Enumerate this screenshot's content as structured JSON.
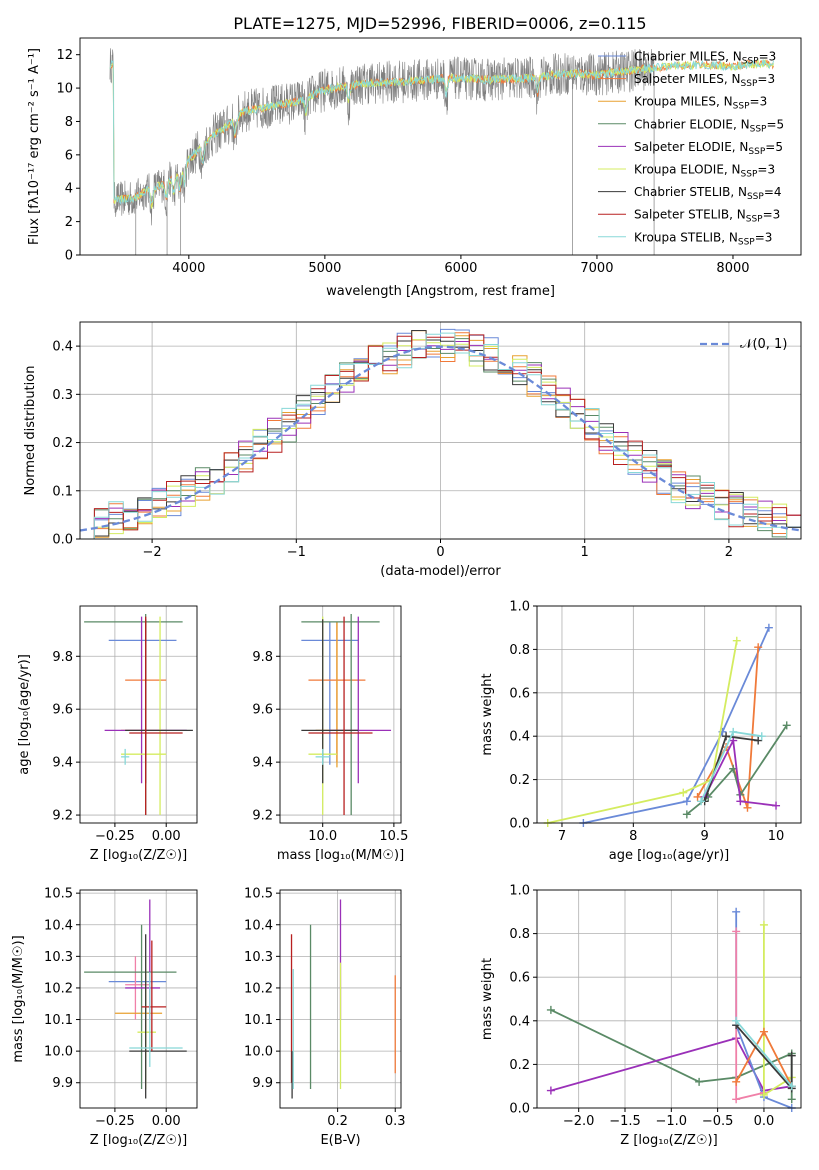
{
  "page_title": "PLATE=1275, MJD=52996, FIBERID=0006, z=0.115",
  "colors": {
    "Chabrier MILES": "#6a8ad8",
    "Salpeter MILES": "#f07a3a",
    "Kroupa MILES": "#e8a030",
    "Chabrier ELODIE": "#5a8a66",
    "Salpeter ELODIE": "#9a30b8",
    "Kroupa ELODIE": "#d4ec60",
    "Chabrier STELIB": "#3a3a3a",
    "Salpeter STELIB": "#b82020",
    "Kroupa STELIB": "#88d8d8",
    "data": "#808080",
    "normal": "#6a8ad8",
    "pink": "#f080a8"
  },
  "chart_data": [
    {
      "id": "spectrum",
      "type": "line",
      "title": "PLATE=1275, MJD=52996, FIBERID=0006, z=0.115",
      "xlabel": "wavelength [Angstrom, rest frame]",
      "ylabel": "Flux [fλ10⁻¹⁷ erg cm⁻² s⁻¹ A⁻¹]",
      "xlim": [
        3200,
        8500
      ],
      "ylim": [
        0,
        13
      ],
      "xticks": [
        "4000",
        "5000",
        "6000",
        "7000",
        "8000"
      ],
      "yticks": [
        "0",
        "2",
        "4",
        "6",
        "8",
        "10",
        "12"
      ],
      "grid": false,
      "legend_position": "right",
      "legend": [
        {
          "name": "Chabrier MILES",
          "label": "Chabrier MILES, N_SSP=3"
        },
        {
          "name": "Salpeter MILES",
          "label": "Salpeter MILES, N_SSP=3"
        },
        {
          "name": "Kroupa MILES",
          "label": "Kroupa MILES, N_SSP=3"
        },
        {
          "name": "Chabrier ELODIE",
          "label": "Chabrier ELODIE, N_SSP=5"
        },
        {
          "name": "Salpeter ELODIE",
          "label": "Salpeter ELODIE, N_SSP=5"
        },
        {
          "name": "Kroupa ELODIE",
          "label": "Kroupa ELODIE, N_SSP=3"
        },
        {
          "name": "Chabrier STELIB",
          "label": "Chabrier STELIB, N_SSP=4"
        },
        {
          "name": "Salpeter STELIB",
          "label": "Salpeter STELIB, N_SSP=3"
        },
        {
          "name": "Kroupa STELIB",
          "label": "Kroupa STELIB, N_SSP=3"
        }
      ],
      "continuum": [
        [
          3450,
          3.3
        ],
        [
          3600,
          3.4
        ],
        [
          3700,
          3.9
        ],
        [
          3800,
          4.2
        ],
        [
          3950,
          5.0
        ],
        [
          4000,
          5.7
        ],
        [
          4100,
          6.5
        ],
        [
          4200,
          7.3
        ],
        [
          4300,
          7.8
        ],
        [
          4400,
          8.6
        ],
        [
          4600,
          8.9
        ],
        [
          4800,
          9.2
        ],
        [
          5000,
          9.9
        ],
        [
          5300,
          10.3
        ],
        [
          5600,
          10.4
        ],
        [
          5900,
          10.6
        ],
        [
          6200,
          10.5
        ],
        [
          6500,
          10.6
        ],
        [
          6800,
          10.9
        ],
        [
          7000,
          10.8
        ],
        [
          7200,
          11.0
        ],
        [
          7500,
          11.3
        ],
        [
          7800,
          11.4
        ],
        [
          8000,
          11.3
        ],
        [
          8200,
          11.5
        ],
        [
          8300,
          11.4
        ]
      ],
      "data_range": [
        3420,
        7420
      ],
      "model_range": [
        3420,
        8300
      ]
    },
    {
      "id": "residuals",
      "type": "line",
      "xlabel": "(data-model)/error",
      "ylabel": "Normed distribution",
      "xlim": [
        -2.5,
        2.5
      ],
      "ylim": [
        0,
        0.45
      ],
      "xticks": [
        "−2",
        "−1",
        "0",
        "1",
        "2"
      ],
      "yticks": [
        "0.0",
        "0.1",
        "0.2",
        "0.3",
        "0.4"
      ],
      "grid": true,
      "legend_position": "top-right",
      "normal_label": "𝒩(0, 1)",
      "bin_width": 0.1
    },
    {
      "id": "age-vs-Z",
      "type": "scatter",
      "xlabel": "Z [log₁₀(Z/Z☉)]",
      "ylabel": "age  [log₁₀(age/yr)]",
      "xlim": [
        -0.42,
        0.15
      ],
      "ylim": [
        9.17,
        9.99
      ],
      "xticks": [
        {
          "v": -0.25,
          "t": "−0.25"
        },
        {
          "v": 0.0,
          "t": "0.00"
        }
      ],
      "yticks": [
        {
          "v": 9.2,
          "t": "9.2"
        },
        {
          "v": 9.4,
          "t": "9.4"
        },
        {
          "v": 9.6,
          "t": "9.6"
        },
        {
          "v": 9.8,
          "t": "9.8"
        }
      ],
      "points": [
        {
          "s": "Chabrier MILES",
          "x": -0.1,
          "xl": -0.28,
          "xh": 0.05,
          "y": 9.86,
          "yl": 9.39,
          "yh": 9.93
        },
        {
          "s": "Salpeter MILES",
          "x": -0.1,
          "xl": -0.2,
          "xh": 0.0,
          "y": 9.71,
          "yl": 9.4,
          "yh": 9.93
        },
        {
          "s": "Kroupa MILES",
          "x": -0.1,
          "xl": -0.22,
          "xh": 0.0,
          "y": 9.52,
          "yl": 9.38,
          "yh": 9.93
        },
        {
          "s": "Chabrier ELODIE",
          "x": -0.1,
          "xl": -0.4,
          "xh": 0.08,
          "y": 9.93,
          "yl": 9.2,
          "yh": 9.96
        },
        {
          "s": "Salpeter ELODIE",
          "x": -0.12,
          "xl": -0.3,
          "xh": 0.1,
          "y": 9.52,
          "yl": 9.32,
          "yh": 9.95
        },
        {
          "s": "Kroupa ELODIE",
          "x": -0.03,
          "xl": -0.22,
          "xh": 0.0,
          "y": 9.43,
          "yl": 9.2,
          "yh": 9.95
        },
        {
          "s": "Chabrier STELIB",
          "x": -0.1,
          "xl": -0.2,
          "xh": 0.13,
          "y": 9.52,
          "yl": 9.32,
          "yh": 9.94
        },
        {
          "s": "Salpeter STELIB",
          "x": -0.1,
          "xl": -0.18,
          "xh": 0.08,
          "y": 9.51,
          "yl": 9.2,
          "yh": 9.95
        },
        {
          "s": "Kroupa STELIB",
          "x": -0.2,
          "xl": -0.22,
          "xh": -0.18,
          "y": 9.42,
          "yl": 9.39,
          "yh": 9.45
        }
      ]
    },
    {
      "id": "age-vs-mass",
      "type": "scatter",
      "xlabel": "mass [log₁₀(M/M☉)]",
      "ylabel": "",
      "xlim": [
        9.7,
        10.55
      ],
      "ylim": [
        9.17,
        9.99
      ],
      "xticks": [
        {
          "v": 10.0,
          "t": "10.0"
        },
        {
          "v": 10.5,
          "t": "10.5"
        }
      ],
      "yticks": [
        {
          "v": 9.2,
          "t": "9.2"
        },
        {
          "v": 9.4,
          "t": "9.4"
        },
        {
          "v": 9.6,
          "t": "9.6"
        },
        {
          "v": 9.8,
          "t": "9.8"
        }
      ],
      "points": [
        {
          "s": "Chabrier MILES",
          "x": 10.05,
          "xl": 9.85,
          "xh": 10.25,
          "y": 9.86,
          "yl": 9.39,
          "yh": 9.93
        },
        {
          "s": "Salpeter MILES",
          "x": 10.1,
          "xl": 9.9,
          "xh": 10.3,
          "y": 9.71,
          "yl": 9.4,
          "yh": 9.93
        },
        {
          "s": "Kroupa MILES",
          "x": 10.1,
          "xl": 9.95,
          "xh": 10.25,
          "y": 9.52,
          "yl": 9.38,
          "yh": 9.93
        },
        {
          "s": "Chabrier ELODIE",
          "x": 10.2,
          "xl": 9.85,
          "xh": 10.4,
          "y": 9.93,
          "yl": 9.2,
          "yh": 9.96
        },
        {
          "s": "Salpeter ELODIE",
          "x": 10.25,
          "xl": 10.05,
          "xh": 10.48,
          "y": 9.52,
          "yl": 9.32,
          "yh": 9.95
        },
        {
          "s": "Kroupa ELODIE",
          "x": 10.0,
          "xl": 9.9,
          "xh": 10.1,
          "y": 9.43,
          "yl": 9.2,
          "yh": 9.95
        },
        {
          "s": "Chabrier STELIB",
          "x": 10.0,
          "xl": 9.85,
          "xh": 10.25,
          "y": 9.52,
          "yl": 9.32,
          "yh": 9.94
        },
        {
          "s": "Salpeter STELIB",
          "x": 10.15,
          "xl": 9.9,
          "xh": 10.35,
          "y": 9.51,
          "yl": 9.2,
          "yh": 9.95
        },
        {
          "s": "Kroupa STELIB",
          "x": 10.0,
          "xl": 9.95,
          "xh": 10.05,
          "y": 9.42,
          "yl": 9.39,
          "yh": 9.45
        }
      ]
    },
    {
      "id": "mass-weight-vs-age",
      "type": "line",
      "xlabel": "age  [log₁₀(age/yr)]",
      "ylabel": "mass weight",
      "xlim": [
        6.65,
        10.35
      ],
      "ylim": [
        0,
        1.0
      ],
      "xticks": [
        {
          "v": 7,
          "t": "7"
        },
        {
          "v": 8,
          "t": "8"
        },
        {
          "v": 9,
          "t": "9"
        },
        {
          "v": 10,
          "t": "10"
        }
      ],
      "yticks": [
        {
          "v": 0.0,
          "t": "0.0"
        },
        {
          "v": 0.2,
          "t": "0.2"
        },
        {
          "v": 0.4,
          "t": "0.4"
        },
        {
          "v": 0.6,
          "t": "0.6"
        },
        {
          "v": 0.8,
          "t": "0.8"
        },
        {
          "v": 1.0,
          "t": "1.0"
        }
      ],
      "grid": true,
      "series": [
        {
          "s": "Chabrier MILES",
          "points": [
            [
              7.3,
              0.0
            ],
            [
              8.75,
              0.1
            ],
            [
              9.25,
              0.42
            ],
            [
              9.9,
              0.9
            ]
          ]
        },
        {
          "s": "Salpeter MILES",
          "points": [
            [
              8.9,
              0.12
            ],
            [
              9.3,
              0.35
            ],
            [
              9.6,
              0.07
            ],
            [
              9.75,
              0.81
            ]
          ]
        },
        {
          "s": "Kroupa ELODIE",
          "points": [
            [
              6.8,
              0.0
            ],
            [
              8.7,
              0.14
            ],
            [
              9.1,
              0.2
            ],
            [
              9.45,
              0.84
            ]
          ]
        },
        {
          "s": "Chabrier ELODIE",
          "points": [
            [
              8.75,
              0.04
            ],
            [
              9.05,
              0.12
            ],
            [
              9.4,
              0.25
            ],
            [
              9.5,
              0.13
            ],
            [
              10.15,
              0.45
            ]
          ]
        },
        {
          "s": "Salpeter ELODIE",
          "points": [
            [
              9.0,
              0.12
            ],
            [
              9.4,
              0.38
            ],
            [
              9.5,
              0.1
            ],
            [
              10.0,
              0.08
            ]
          ]
        },
        {
          "s": "Chabrier STELIB",
          "points": [
            [
              9.0,
              0.1
            ],
            [
              9.3,
              0.4
            ],
            [
              9.75,
              0.38
            ]
          ]
        },
        {
          "s": "Kroupa STELIB",
          "points": [
            [
              8.95,
              0.1
            ],
            [
              9.4,
              0.42
            ],
            [
              9.8,
              0.4
            ]
          ]
        }
      ]
    },
    {
      "id": "mass-vs-Z",
      "type": "scatter",
      "xlabel": "Z [log₁₀(Z/Z☉)]",
      "ylabel": "mass [log₁₀(M/M☉)]",
      "xlim": [
        -0.42,
        0.15
      ],
      "ylim": [
        9.82,
        10.51
      ],
      "xticks": [
        {
          "v": -0.25,
          "t": "−0.25"
        },
        {
          "v": 0.0,
          "t": "0.00"
        }
      ],
      "yticks": [
        {
          "v": 9.9,
          "t": "9.9"
        },
        {
          "v": 10.0,
          "t": "10.0"
        },
        {
          "v": 10.1,
          "t": "10.1"
        },
        {
          "v": 10.2,
          "t": "10.2"
        },
        {
          "v": 10.3,
          "t": "10.3"
        },
        {
          "v": 10.4,
          "t": "10.4"
        },
        {
          "v": 10.5,
          "t": "10.5"
        }
      ],
      "points": [
        {
          "s": "Chabrier MILES",
          "x": -0.1,
          "xl": -0.28,
          "xh": 0.0,
          "y": 10.22,
          "yl": 9.91,
          "yh": 10.24
        },
        {
          "s": "pink",
          "x": -0.15,
          "xl": -0.2,
          "xh": -0.08,
          "y": 10.21,
          "yl": 10.1,
          "yh": 10.3
        },
        {
          "s": "Kroupa MILES",
          "x": -0.1,
          "xl": -0.25,
          "xh": -0.02,
          "y": 10.12,
          "yl": 9.98,
          "yh": 10.26
        },
        {
          "s": "Chabrier ELODIE",
          "x": -0.12,
          "xl": -0.4,
          "xh": 0.05,
          "y": 10.25,
          "yl": 9.88,
          "yh": 10.4
        },
        {
          "s": "Salpeter ELODIE",
          "x": -0.08,
          "xl": -0.2,
          "xh": -0.03,
          "y": 10.2,
          "yl": 10.1,
          "yh": 10.48
        },
        {
          "s": "Kroupa ELODIE",
          "x": -0.1,
          "xl": -0.14,
          "xh": -0.05,
          "y": 10.06,
          "yl": 9.88,
          "yh": 10.3
        },
        {
          "s": "Chabrier STELIB",
          "x": -0.1,
          "xl": -0.18,
          "xh": 0.1,
          "y": 10.0,
          "yl": 9.85,
          "yh": 10.37
        },
        {
          "s": "Salpeter STELIB",
          "x": -0.07,
          "xl": -0.12,
          "xh": 0.0,
          "y": 10.14,
          "yl": 10.0,
          "yh": 10.35
        },
        {
          "s": "Kroupa STELIB",
          "x": -0.08,
          "xl": -0.18,
          "xh": 0.08,
          "y": 10.01,
          "yl": 9.95,
          "yh": 10.25
        }
      ]
    },
    {
      "id": "mass-vs-EBV",
      "type": "scatter",
      "xlabel": "E(B-V)",
      "ylabel": "",
      "xlim": [
        0.1,
        0.31
      ],
      "ylim": [
        9.82,
        10.51
      ],
      "xticks": [
        {
          "v": 0.2,
          "t": "0.2"
        },
        {
          "v": 0.3,
          "t": "0.3"
        }
      ],
      "yticks": [
        {
          "v": 9.9,
          "t": "9.9"
        },
        {
          "v": 10.0,
          "t": "10.0"
        },
        {
          "v": 10.1,
          "t": "10.1"
        },
        {
          "v": 10.2,
          "t": "10.2"
        },
        {
          "v": 10.3,
          "t": "10.3"
        },
        {
          "v": 10.4,
          "t": "10.4"
        },
        {
          "v": 10.5,
          "t": "10.5"
        }
      ],
      "points": [
        {
          "s": "Salpeter STELIB",
          "x": 0.12,
          "yl": 9.9,
          "yh": 10.37
        },
        {
          "s": "Chabrier STELIB",
          "x": 0.121,
          "yl": 9.85,
          "yh": 10.0
        },
        {
          "s": "Kroupa STELIB",
          "x": 0.123,
          "yl": 9.88,
          "yh": 10.26
        },
        {
          "s": "Chabrier ELODIE",
          "x": 0.153,
          "yl": 9.88,
          "yh": 10.4
        },
        {
          "s": "Salpeter ELODIE",
          "x": 0.205,
          "yl": 10.1,
          "yh": 10.48
        },
        {
          "s": "Kroupa ELODIE",
          "x": 0.205,
          "yl": 9.88,
          "yh": 10.28
        },
        {
          "s": "Salpeter MILES",
          "x": 0.3,
          "yl": 9.93,
          "yh": 10.24
        }
      ]
    },
    {
      "id": "mass-weight-vs-Z",
      "type": "line",
      "xlabel": "Z [log₁₀(Z/Z☉)]",
      "ylabel": "mass weight",
      "xlim": [
        -2.45,
        0.4
      ],
      "ylim": [
        0,
        1.0
      ],
      "xticks": [
        {
          "v": -2.0,
          "t": "−2.0"
        },
        {
          "v": -1.5,
          "t": "−1.5"
        },
        {
          "v": -1.0,
          "t": "−1.0"
        },
        {
          "v": -0.5,
          "t": "−0.5"
        },
        {
          "v": 0.0,
          "t": "0.0"
        }
      ],
      "yticks": [
        {
          "v": 0.0,
          "t": "0.0"
        },
        {
          "v": 0.2,
          "t": "0.2"
        },
        {
          "v": 0.4,
          "t": "0.4"
        },
        {
          "v": 0.6,
          "t": "0.6"
        },
        {
          "v": 0.8,
          "t": "0.8"
        },
        {
          "v": 1.0,
          "t": "1.0"
        }
      ],
      "grid": true,
      "series": [
        {
          "s": "Chabrier ELODIE",
          "points": [
            [
              -2.3,
              0.45
            ],
            [
              -0.7,
              0.12
            ],
            [
              -0.3,
              0.14
            ],
            [
              0.3,
              0.25
            ],
            [
              0.3,
              0.04
            ]
          ]
        },
        {
          "s": "Salpeter ELODIE",
          "points": [
            [
              -2.3,
              0.08
            ],
            [
              -0.3,
              0.32
            ],
            [
              0.0,
              0.08
            ],
            [
              0.3,
              0.1
            ]
          ]
        },
        {
          "s": "Chabrier MILES",
          "points": [
            [
              -0.3,
              0.9
            ],
            [
              -0.3,
              0.38
            ],
            [
              0.0,
              0.05
            ],
            [
              0.3,
              0.0
            ]
          ]
        },
        {
          "s": "pink",
          "points": [
            [
              -0.3,
              0.81
            ],
            [
              -0.3,
              0.04
            ],
            [
              0.0,
              0.07
            ]
          ]
        },
        {
          "s": "Kroupa ELODIE",
          "points": [
            [
              0.0,
              0.84
            ],
            [
              0.0,
              0.06
            ],
            [
              0.3,
              0.14
            ]
          ]
        },
        {
          "s": "Salpeter MILES",
          "points": [
            [
              -0.3,
              0.12
            ],
            [
              0.0,
              0.35
            ],
            [
              0.3,
              0.1
            ]
          ]
        },
        {
          "s": "Chabrier STELIB",
          "points": [
            [
              -0.3,
              0.38
            ],
            [
              0.3,
              0.09
            ],
            [
              0.3,
              0.24
            ]
          ]
        },
        {
          "s": "Kroupa STELIB",
          "points": [
            [
              -0.3,
              0.4
            ],
            [
              0.3,
              0.1
            ]
          ]
        }
      ]
    }
  ]
}
